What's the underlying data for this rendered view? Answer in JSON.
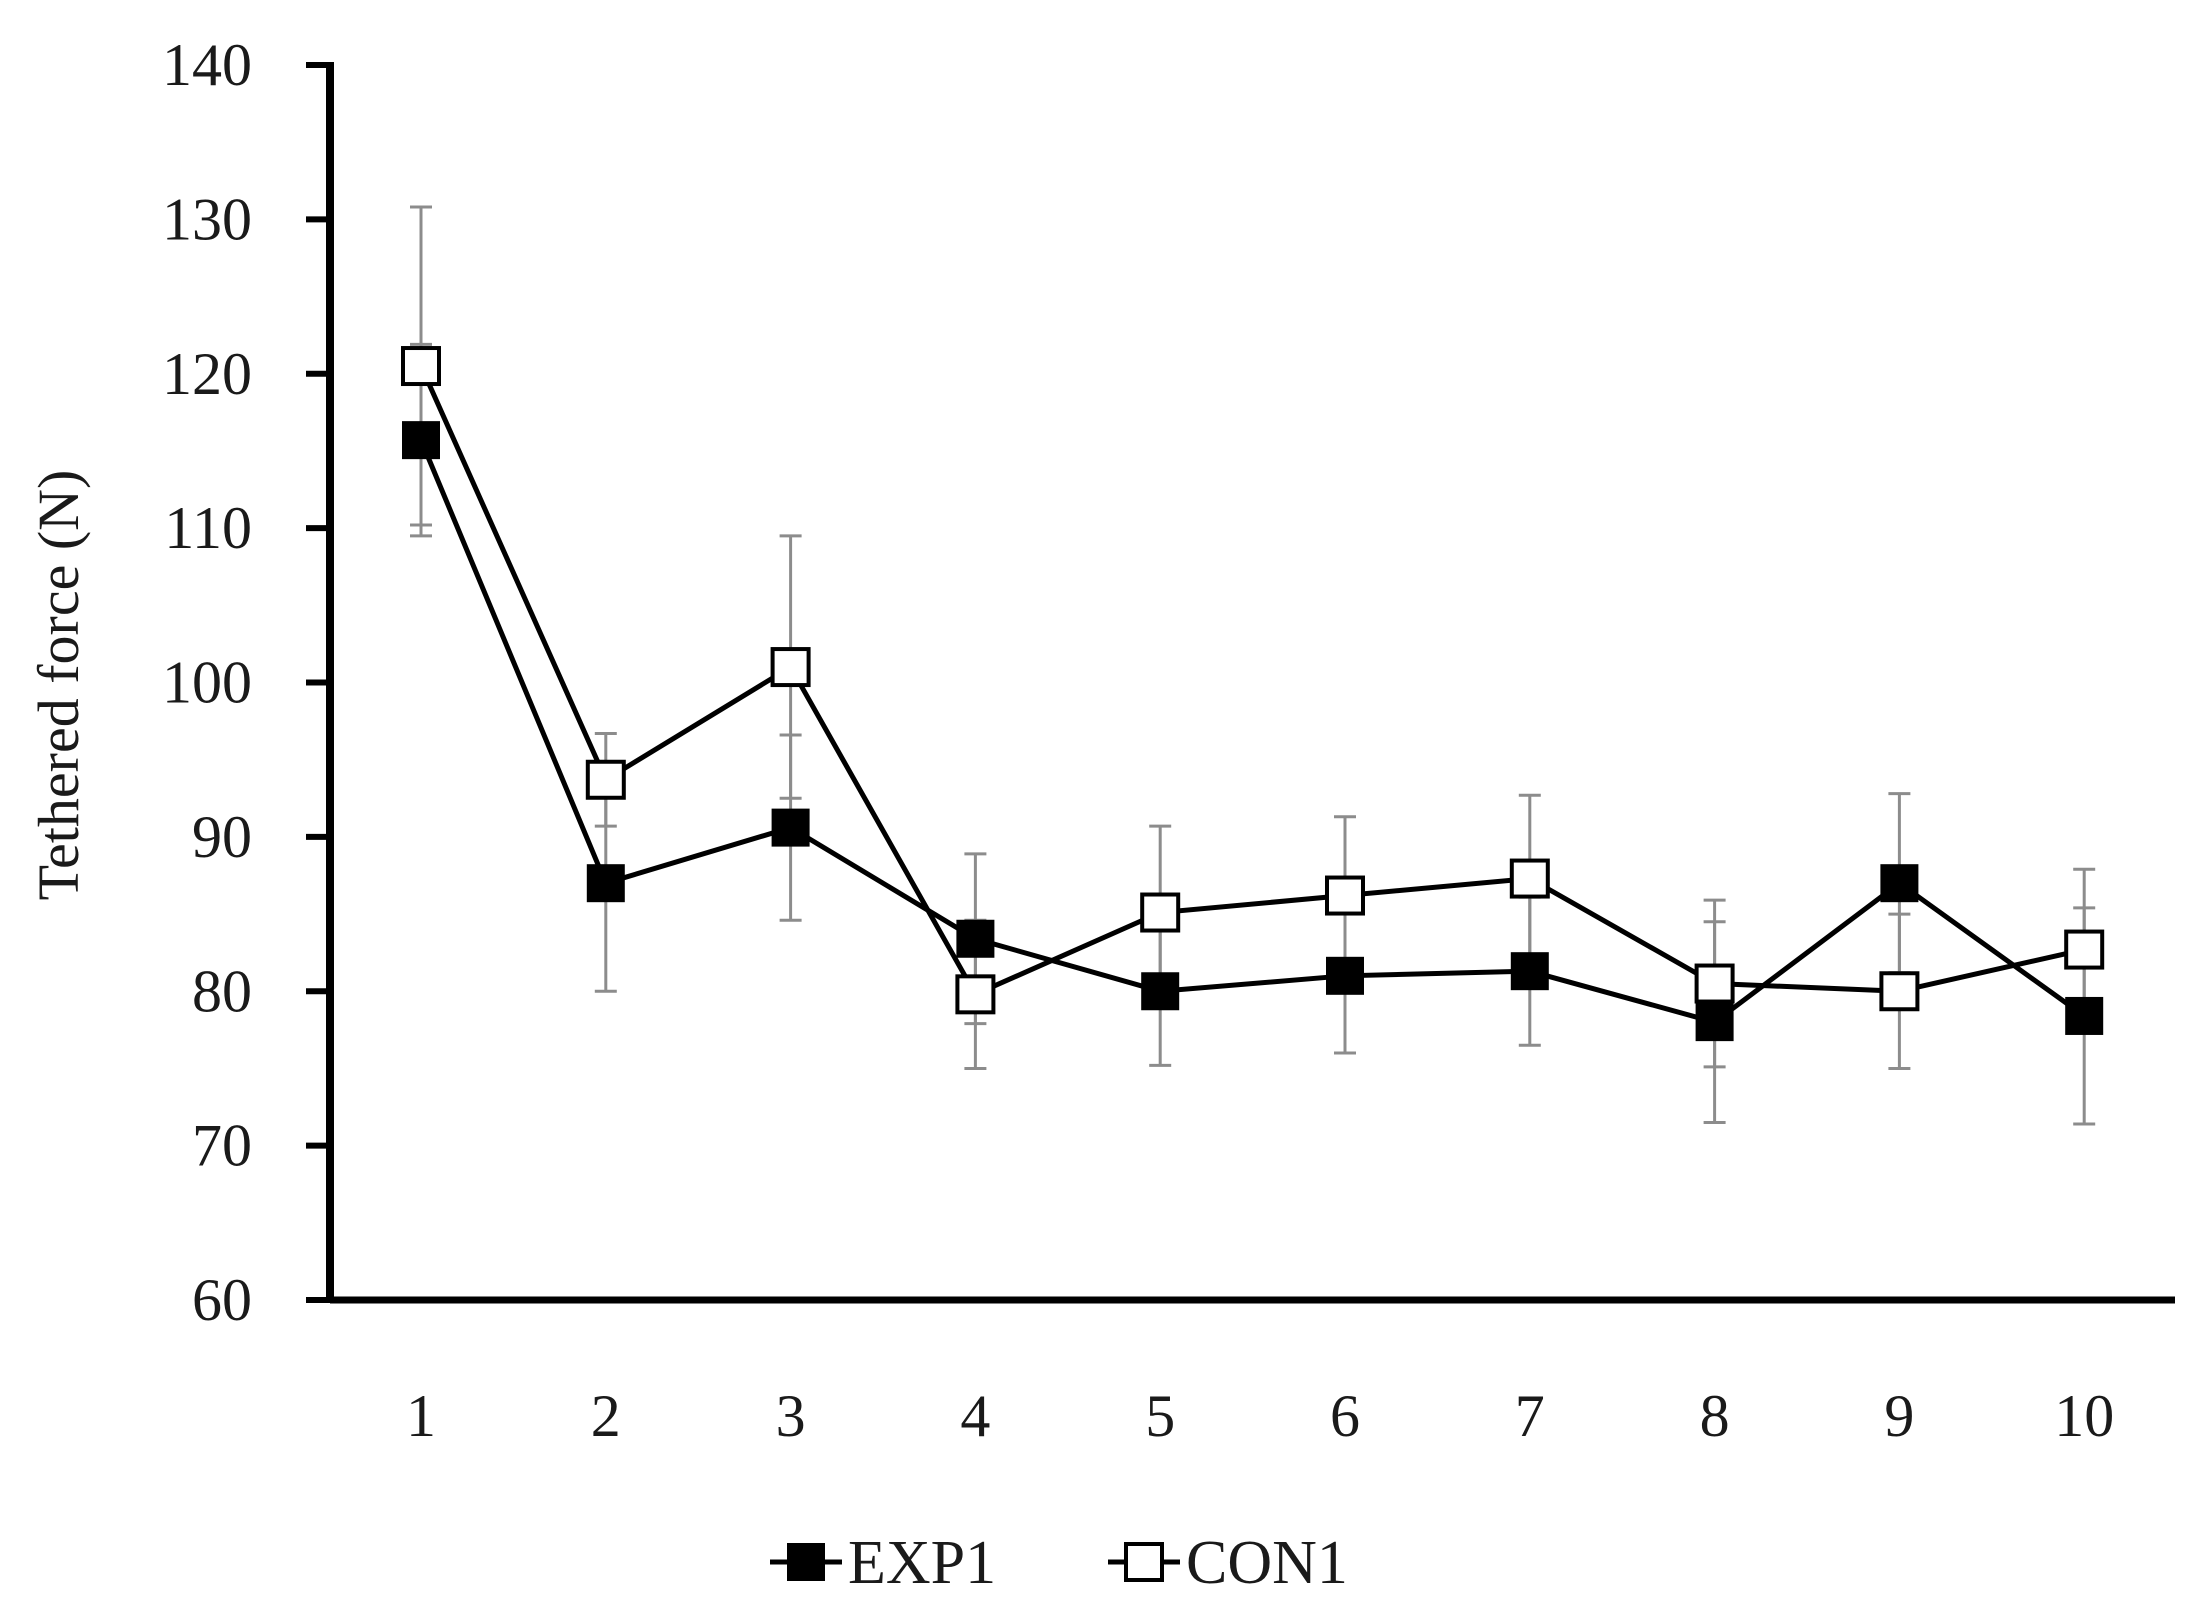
{
  "chart_data": {
    "type": "line",
    "title": "",
    "xlabel": "",
    "ylabel": "Tethered force (N)",
    "categories": [
      "1",
      "2",
      "3",
      "4",
      "5",
      "6",
      "7",
      "8",
      "9",
      "10"
    ],
    "ylim": [
      60,
      140
    ],
    "yticks": [
      "60",
      "70",
      "80",
      "90",
      "100",
      "110",
      "120",
      "130",
      "140"
    ],
    "grid": false,
    "legend_position": "bottom-center",
    "series": [
      {
        "name": "EXP1",
        "marker": "filled-square",
        "color": "#000000",
        "values": [
          115.7,
          87.0,
          90.6,
          83.4,
          80.0,
          81.0,
          81.3,
          78.0,
          87.0,
          78.4
        ],
        "error": [
          6.2,
          7.0,
          6.0,
          5.5,
          4.8,
          5.0,
          4.8,
          6.5,
          5.8,
          7.0
        ]
      },
      {
        "name": "CON1",
        "marker": "open-square",
        "color": "#000000",
        "values": [
          120.5,
          93.7,
          101.0,
          79.8,
          85.1,
          86.2,
          87.3,
          80.5,
          80.0,
          82.7
        ],
        "error": [
          10.3,
          3.0,
          8.5,
          4.8,
          5.6,
          5.1,
          5.4,
          5.4,
          5.0,
          5.2
        ]
      }
    ]
  }
}
